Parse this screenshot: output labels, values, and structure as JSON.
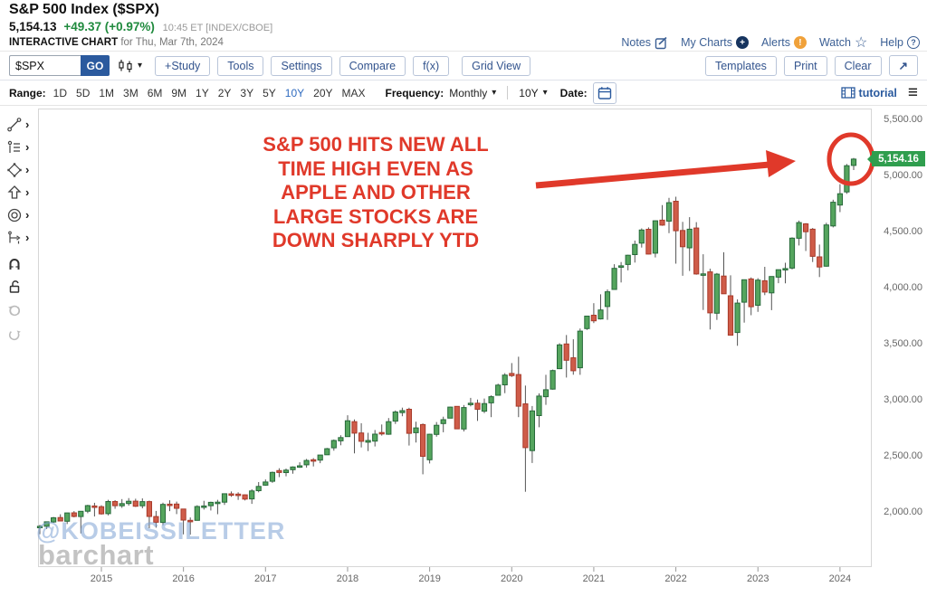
{
  "header": {
    "title": "S&P 500 Index ($SPX)",
    "price": "5,154.13",
    "change": "+49.37 (+0.97%)",
    "time": "10:45 ET [INDEX/CBOE]",
    "chart_label": "INTERACTIVE CHART",
    "chart_date": "for Thu, Mar 7th, 2024"
  },
  "topnav": {
    "notes": "Notes",
    "my_charts": "My Charts",
    "alerts": "Alerts",
    "watch": "Watch",
    "help": "Help",
    "my_charts_glyph": "+",
    "alerts_glyph": "!",
    "watch_glyph": "☆",
    "help_glyph": "?"
  },
  "toolbar": {
    "symbol_value": "$SPX",
    "go_label": "GO",
    "buttons": [
      "+Study",
      "Tools",
      "Settings",
      "Compare",
      "f(x)",
      "Grid View"
    ],
    "right_buttons": [
      "Templates",
      "Print",
      "Clear"
    ],
    "popout_glyph": "↗"
  },
  "range_bar": {
    "range_label": "Range:",
    "ranges": [
      "1D",
      "5D",
      "1M",
      "3M",
      "6M",
      "9M",
      "1Y",
      "2Y",
      "3Y",
      "5Y",
      "10Y",
      "20Y",
      "MAX"
    ],
    "selected_range": "10Y",
    "frequency_label": "Frequency:",
    "frequency_value": "Monthly",
    "duration_value": "10Y",
    "date_label": "Date:",
    "tutorial_label": "tutorial"
  },
  "chart": {
    "watermark_handle": "@KOBEISSILETTER",
    "watermark_brand": "barchart",
    "annotation_lines": [
      "S&P 500 HITS NEW ALL",
      "TIME HIGH EVEN AS",
      "APPLE AND OTHER",
      "LARGE STOCKS ARE",
      "DOWN SHARPLY YTD"
    ]
  },
  "colors": {
    "up": "#55a55e",
    "up_border": "#27693a",
    "down": "#cf5c49",
    "down_border": "#a83a2a",
    "wick": "#555555",
    "annotation": "#e0392a",
    "badge": "#2f9e4e",
    "accent_blue": "#33548e",
    "header_green": "#1f8a3d"
  },
  "chart_data": {
    "type": "candlestick",
    "symbol": "$SPX",
    "frequency": "Monthly",
    "range": "10Y",
    "last_price": 5154.16,
    "last_price_label": "5,154.16",
    "y_ticks": [
      5500,
      5000,
      4500,
      4000,
      3500,
      3000,
      2500,
      2000
    ],
    "y_tick_labels": [
      "5,500.00",
      "5,000.00",
      "4,500.00",
      "4,000.00",
      "3,500.00",
      "3,000.00",
      "2,500.00",
      "2,000.00"
    ],
    "x_labels": [
      "2015",
      "2016",
      "2017",
      "2018",
      "2019",
      "2020",
      "2021",
      "2022",
      "2023",
      "2024"
    ],
    "ylim": [
      1550,
      5600
    ],
    "ohlc": [
      [
        "2014-04",
        1873,
        1897,
        1814,
        1884
      ],
      [
        "2014-05",
        1884,
        1924,
        1860,
        1924
      ],
      [
        "2014-06",
        1923,
        1968,
        1915,
        1960
      ],
      [
        "2014-07",
        1962,
        1991,
        1930,
        1931
      ],
      [
        "2014-08",
        1929,
        2005,
        1904,
        2003
      ],
      [
        "2014-09",
        2004,
        2019,
        1964,
        1972
      ],
      [
        "2014-10",
        1971,
        2018,
        1821,
        2018
      ],
      [
        "2014-11",
        2018,
        2076,
        2001,
        2068
      ],
      [
        "2014-12",
        2065,
        2093,
        1972,
        2059
      ],
      [
        "2015-01",
        2059,
        2072,
        1988,
        1995
      ],
      [
        "2015-02",
        1997,
        2120,
        1981,
        2105
      ],
      [
        "2015-03",
        2105,
        2117,
        2040,
        2068
      ],
      [
        "2015-04",
        2067,
        2126,
        2048,
        2086
      ],
      [
        "2015-05",
        2087,
        2135,
        2068,
        2107
      ],
      [
        "2015-06",
        2108,
        2130,
        2056,
        2063
      ],
      [
        "2015-07",
        2067,
        2133,
        2044,
        2104
      ],
      [
        "2015-08",
        2104,
        2113,
        1867,
        1972
      ],
      [
        "2015-09",
        1971,
        2021,
        1872,
        1920
      ],
      [
        "2015-10",
        1919,
        2095,
        1894,
        2079
      ],
      [
        "2015-11",
        2081,
        2116,
        2019,
        2080
      ],
      [
        "2015-12",
        2082,
        2104,
        1993,
        2044
      ],
      [
        "2016-01",
        2038,
        2038,
        1812,
        1940
      ],
      [
        "2016-02",
        1937,
        1963,
        1810,
        1932
      ],
      [
        "2016-03",
        1937,
        2072,
        1937,
        2060
      ],
      [
        "2016-04",
        2056,
        2111,
        2033,
        2065
      ],
      [
        "2016-05",
        2067,
        2103,
        2025,
        2097
      ],
      [
        "2016-06",
        2093,
        2120,
        1992,
        2099
      ],
      [
        "2016-07",
        2099,
        2177,
        2074,
        2174
      ],
      [
        "2016-08",
        2173,
        2194,
        2147,
        2171
      ],
      [
        "2016-09",
        2171,
        2187,
        2119,
        2168
      ],
      [
        "2016-10",
        2164,
        2169,
        2114,
        2126
      ],
      [
        "2016-11",
        2128,
        2214,
        2084,
        2199
      ],
      [
        "2016-12",
        2201,
        2278,
        2187,
        2239
      ],
      [
        "2017-01",
        2251,
        2301,
        2245,
        2279
      ],
      [
        "2017-02",
        2285,
        2371,
        2271,
        2364
      ],
      [
        "2017-03",
        2380,
        2401,
        2322,
        2363
      ],
      [
        "2017-04",
        2362,
        2399,
        2329,
        2384
      ],
      [
        "2017-05",
        2388,
        2418,
        2352,
        2412
      ],
      [
        "2017-06",
        2415,
        2454,
        2405,
        2423
      ],
      [
        "2017-07",
        2431,
        2484,
        2407,
        2470
      ],
      [
        "2017-08",
        2477,
        2491,
        2417,
        2472
      ],
      [
        "2017-09",
        2474,
        2519,
        2446,
        2519
      ],
      [
        "2017-10",
        2521,
        2582,
        2520,
        2575
      ],
      [
        "2017-11",
        2583,
        2657,
        2557,
        2648
      ],
      [
        "2017-12",
        2645,
        2695,
        2606,
        2674
      ],
      [
        "2018-01",
        2683,
        2873,
        2682,
        2824
      ],
      [
        "2018-02",
        2816,
        2835,
        2533,
        2714
      ],
      [
        "2018-03",
        2715,
        2802,
        2586,
        2641
      ],
      [
        "2018-04",
        2633,
        2717,
        2554,
        2648
      ],
      [
        "2018-05",
        2643,
        2742,
        2595,
        2705
      ],
      [
        "2018-06",
        2719,
        2791,
        2692,
        2718
      ],
      [
        "2018-07",
        2704,
        2848,
        2699,
        2816
      ],
      [
        "2018-08",
        2821,
        2916,
        2796,
        2902
      ],
      [
        "2018-09",
        2896,
        2941,
        2864,
        2914
      ],
      [
        "2018-10",
        2926,
        2940,
        2603,
        2712
      ],
      [
        "2018-11",
        2717,
        2815,
        2631,
        2760
      ],
      [
        "2018-12",
        2790,
        2800,
        2347,
        2507
      ],
      [
        "2019-01",
        2477,
        2708,
        2444,
        2704
      ],
      [
        "2019-02",
        2703,
        2813,
        2682,
        2784
      ],
      [
        "2019-03",
        2799,
        2860,
        2722,
        2834
      ],
      [
        "2019-04",
        2848,
        2949,
        2848,
        2946
      ],
      [
        "2019-05",
        2952,
        2954,
        2751,
        2752
      ],
      [
        "2019-06",
        2751,
        2964,
        2729,
        2942
      ],
      [
        "2019-07",
        2971,
        3028,
        2952,
        2980
      ],
      [
        "2019-08",
        2980,
        3013,
        2822,
        2926
      ],
      [
        "2019-09",
        2909,
        3022,
        2892,
        2977
      ],
      [
        "2019-10",
        2983,
        3050,
        2856,
        3038
      ],
      [
        "2019-11",
        3051,
        3154,
        3051,
        3141
      ],
      [
        "2019-12",
        3144,
        3248,
        3070,
        3231
      ],
      [
        "2020-01",
        3245,
        3338,
        3214,
        3226
      ],
      [
        "2020-02",
        3236,
        3394,
        2856,
        2954
      ],
      [
        "2020-03",
        2975,
        3137,
        2192,
        2585
      ],
      [
        "2020-04",
        2558,
        2955,
        2448,
        2912
      ],
      [
        "2020-05",
        2870,
        3068,
        2766,
        3044
      ],
      [
        "2020-06",
        3038,
        3233,
        2966,
        3100
      ],
      [
        "2020-07",
        3106,
        3280,
        3101,
        3271
      ],
      [
        "2020-08",
        3288,
        3514,
        3284,
        3500
      ],
      [
        "2020-09",
        3508,
        3588,
        3209,
        3363
      ],
      [
        "2020-10",
        3385,
        3550,
        3234,
        3270
      ],
      [
        "2020-11",
        3296,
        3646,
        3233,
        3622
      ],
      [
        "2020-12",
        3645,
        3760,
        3633,
        3756
      ],
      [
        "2021-01",
        3764,
        3871,
        3694,
        3714
      ],
      [
        "2021-02",
        3731,
        3950,
        3725,
        3811
      ],
      [
        "2021-03",
        3842,
        3994,
        3723,
        3973
      ],
      [
        "2021-04",
        3993,
        4218,
        3992,
        4181
      ],
      [
        "2021-05",
        4191,
        4238,
        4056,
        4204
      ],
      [
        "2021-06",
        4216,
        4302,
        4164,
        4298
      ],
      [
        "2021-07",
        4304,
        4429,
        4233,
        4395
      ],
      [
        "2021-08",
        4406,
        4537,
        4367,
        4523
      ],
      [
        "2021-09",
        4529,
        4546,
        4306,
        4308
      ],
      [
        "2021-10",
        4317,
        4608,
        4279,
        4605
      ],
      [
        "2021-11",
        4611,
        4744,
        4561,
        4567
      ],
      [
        "2021-12",
        4602,
        4809,
        4495,
        4766
      ],
      [
        "2022-01",
        4779,
        4819,
        4223,
        4516
      ],
      [
        "2022-02",
        4519,
        4595,
        4115,
        4374
      ],
      [
        "2022-03",
        4364,
        4637,
        4158,
        4530
      ],
      [
        "2022-04",
        4541,
        4593,
        4125,
        4132
      ],
      [
        "2022-05",
        4131,
        4307,
        3811,
        4132
      ],
      [
        "2022-06",
        4150,
        4178,
        3637,
        3785
      ],
      [
        "2022-07",
        3782,
        4140,
        3722,
        4130
      ],
      [
        "2022-08",
        4113,
        4325,
        3954,
        3955
      ],
      [
        "2022-09",
        3937,
        4119,
        3584,
        3586
      ],
      [
        "2022-10",
        3610,
        3905,
        3492,
        3872
      ],
      [
        "2022-11",
        3880,
        4080,
        3698,
        4080
      ],
      [
        "2022-12",
        4087,
        4101,
        3764,
        3840
      ],
      [
        "2023-01",
        3853,
        4094,
        3794,
        4077
      ],
      [
        "2023-02",
        4071,
        4195,
        3943,
        3970
      ],
      [
        "2023-03",
        3963,
        4110,
        3809,
        4109
      ],
      [
        "2023-04",
        4103,
        4170,
        4049,
        4169
      ],
      [
        "2023-05",
        4167,
        4231,
        4048,
        4180
      ],
      [
        "2023-06",
        4183,
        4458,
        4172,
        4450
      ],
      [
        "2023-07",
        4450,
        4607,
        4385,
        4589
      ],
      [
        "2023-08",
        4578,
        4584,
        4336,
        4508
      ],
      [
        "2023-09",
        4530,
        4541,
        4238,
        4288
      ],
      [
        "2023-10",
        4284,
        4393,
        4104,
        4194
      ],
      [
        "2023-11",
        4201,
        4587,
        4197,
        4568
      ],
      [
        "2023-12",
        4559,
        4793,
        4546,
        4770
      ],
      [
        "2024-01",
        4745,
        4931,
        4682,
        4846
      ],
      [
        "2024-02",
        4862,
        5111,
        4845,
        5096
      ],
      [
        "2024-03",
        5098,
        5165,
        5057,
        5154.16
      ]
    ]
  }
}
